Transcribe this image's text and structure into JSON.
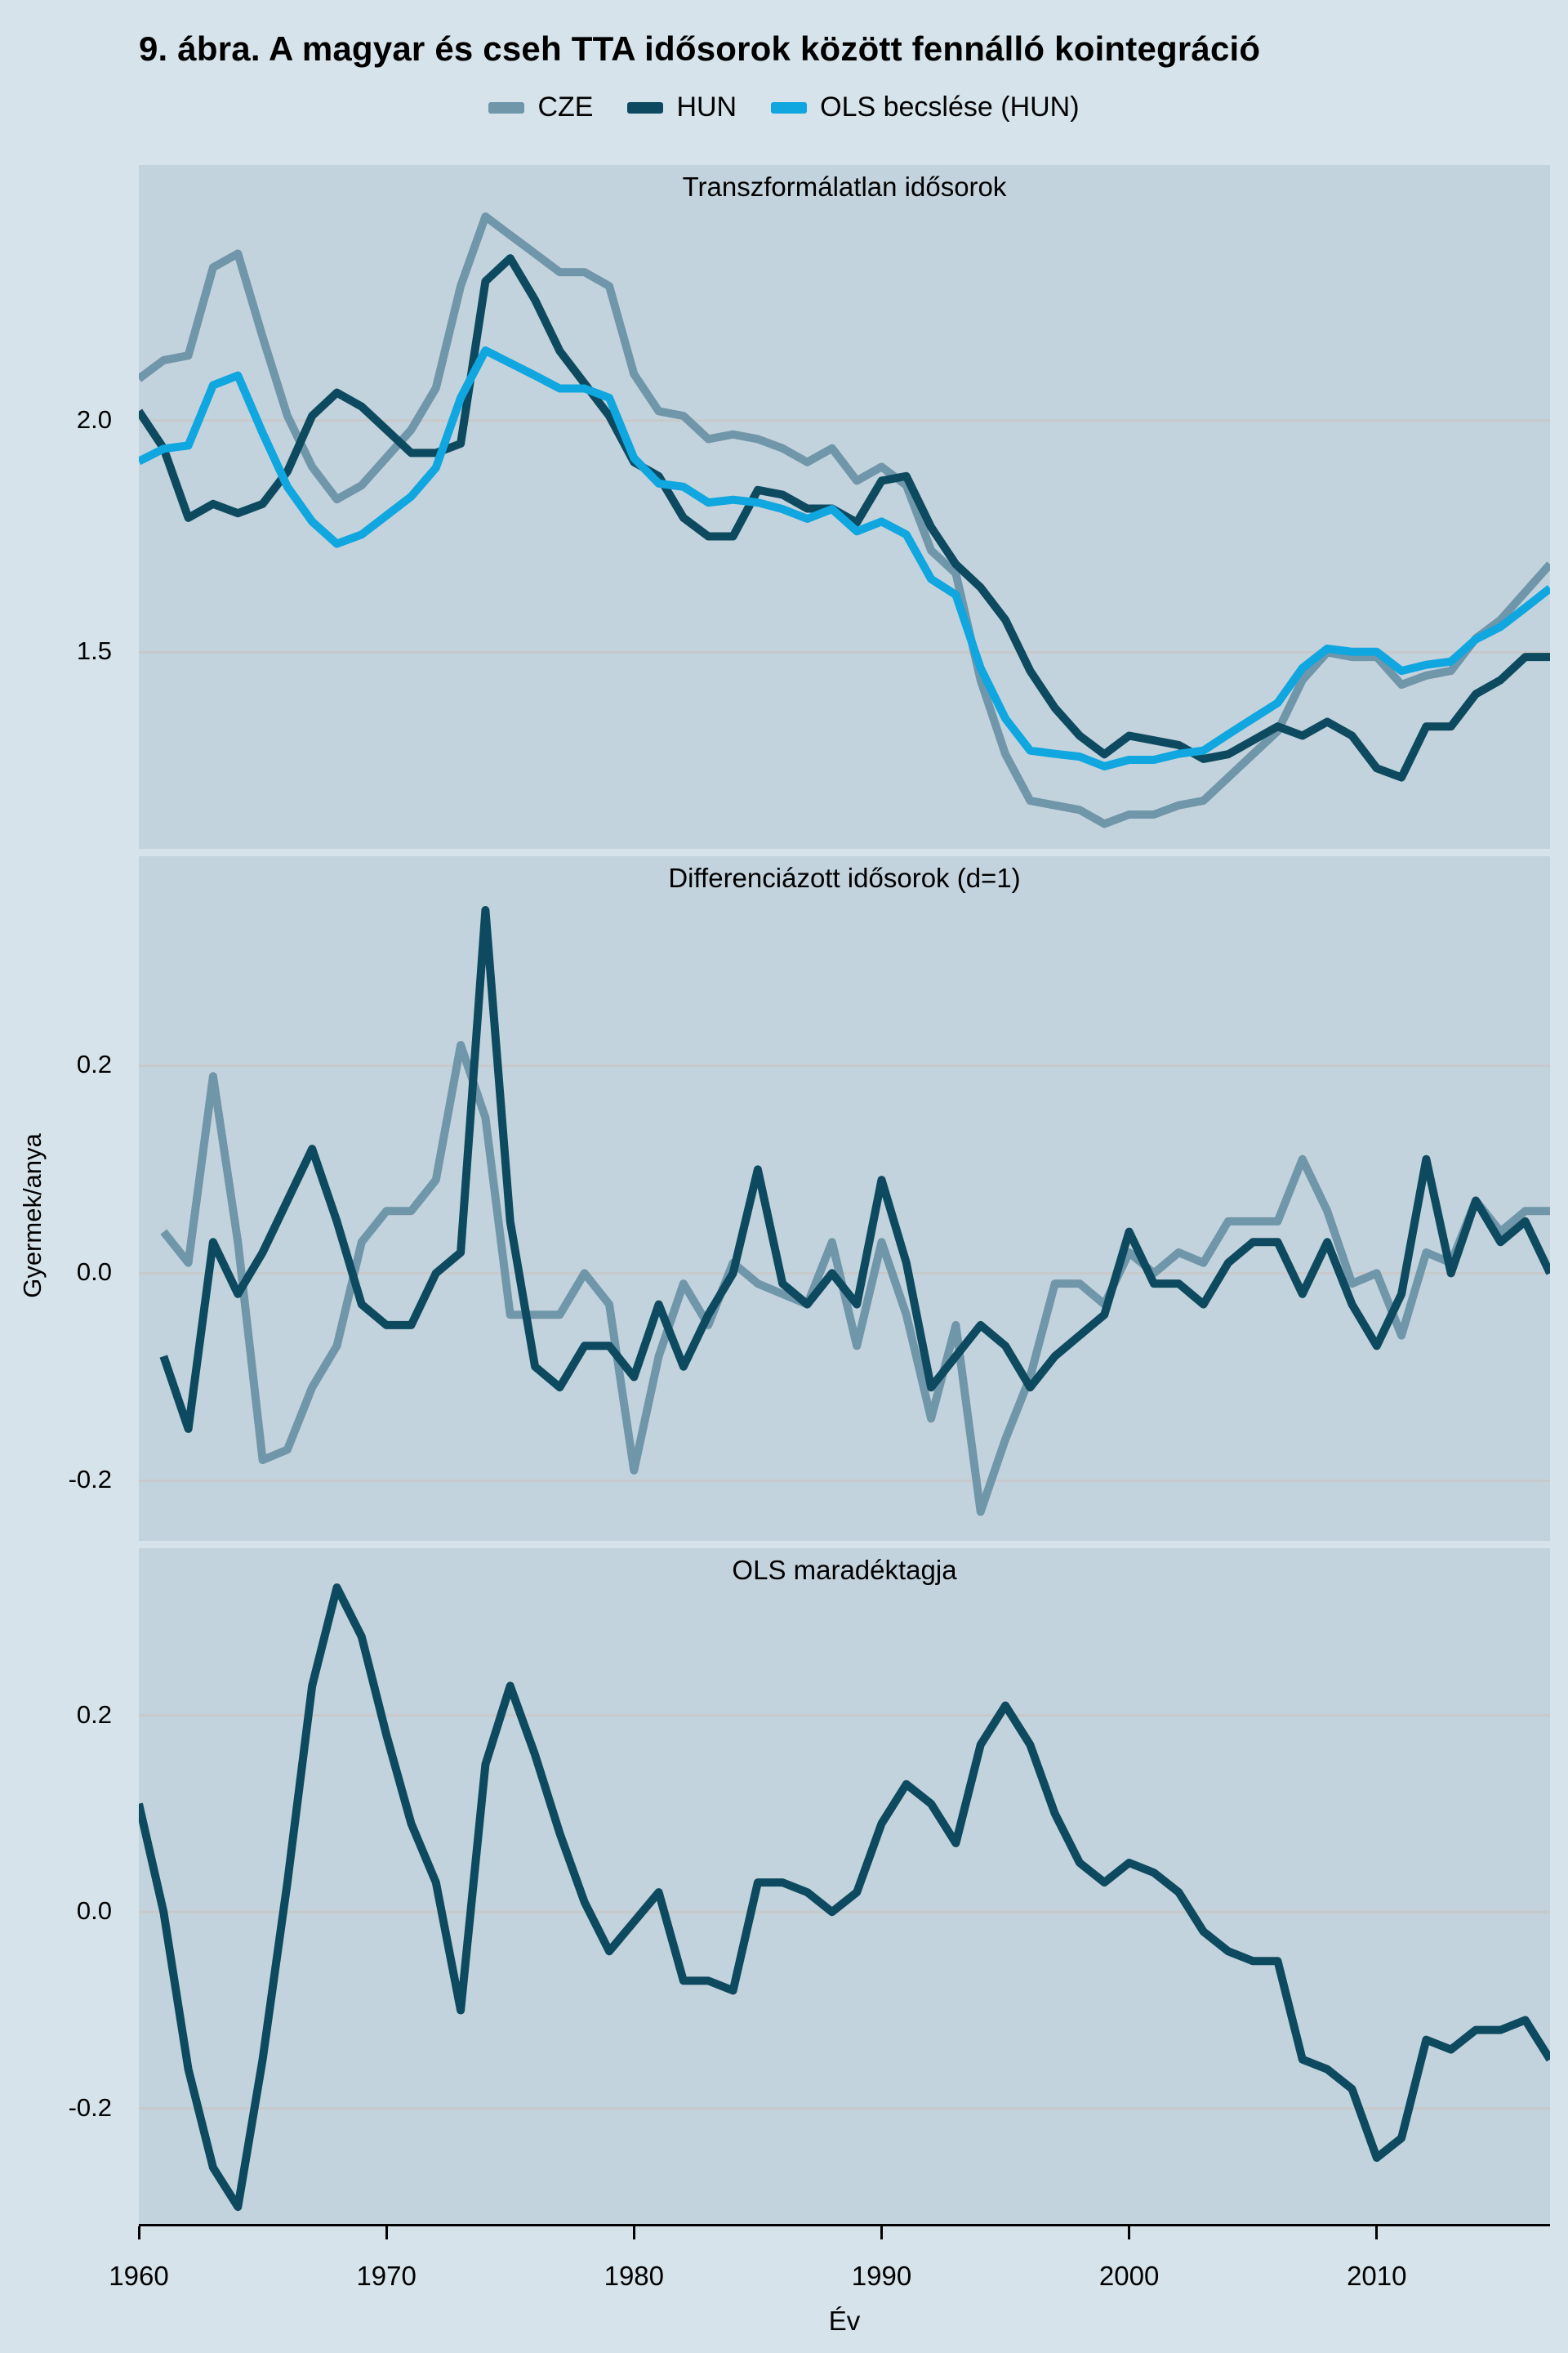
{
  "figure": {
    "title": "9. ábra. A magyar és cseh TTA idősorok között fennálló kointegráció",
    "y_axis_label": "Gyermek/anya",
    "x_axis_label": "Év",
    "x_domain": [
      1960,
      2017
    ],
    "x_ticks": [
      {
        "year": 1960,
        "label": "1960"
      },
      {
        "year": 1970,
        "label": "1970"
      },
      {
        "year": 1980,
        "label": "1980"
      },
      {
        "year": 1990,
        "label": "1990"
      },
      {
        "year": 2000,
        "label": "2000"
      },
      {
        "year": 2010,
        "label": "2010"
      }
    ],
    "legend": [
      {
        "key": "cze",
        "label": "CZE"
      },
      {
        "key": "hun",
        "label": "HUN"
      },
      {
        "key": "ols",
        "label": "OLS becslése (HUN)"
      }
    ],
    "colors": {
      "cze": "#7096a9",
      "hun": "#0d4a5f",
      "ols": "#10a6df",
      "page_bg": "#d6e3eb",
      "panel_bg": "#c3d3dd",
      "gridline": "#c7c9ca",
      "axis": "#000000"
    }
  },
  "chart_data": [
    {
      "type": "line",
      "panel": 1,
      "title": "Transzformálatlan idősorok",
      "ylabel": "Gyermek/anya",
      "ylim": [
        1.076,
        2.551
      ],
      "grid": true,
      "gridlines": [
        {
          "value": 2.0,
          "label": "2.0"
        },
        {
          "value": 1.5,
          "label": "1.5"
        }
      ],
      "series": [
        {
          "name": "CZE",
          "color_key": "cze",
          "start_year": 1960,
          "values": [
            2.09,
            2.13,
            2.14,
            2.33,
            2.36,
            2.18,
            2.01,
            1.9,
            1.83,
            1.86,
            1.92,
            1.98,
            2.07,
            2.29,
            2.44,
            2.4,
            2.36,
            2.32,
            2.32,
            2.29,
            2.1,
            2.02,
            2.01,
            1.96,
            1.97,
            1.96,
            1.94,
            1.91,
            1.94,
            1.87,
            1.9,
            1.86,
            1.72,
            1.67,
            1.44,
            1.28,
            1.18,
            1.17,
            1.16,
            1.13,
            1.15,
            1.15,
            1.17,
            1.18,
            1.23,
            1.28,
            1.33,
            1.44,
            1.5,
            1.49,
            1.49,
            1.43,
            1.45,
            1.46,
            1.53,
            1.57,
            1.63,
            1.69
          ]
        },
        {
          "name": "HUN",
          "color_key": "hun",
          "start_year": 1960,
          "values": [
            2.02,
            1.94,
            1.79,
            1.82,
            1.8,
            1.82,
            1.89,
            2.01,
            2.06,
            2.03,
            1.98,
            1.93,
            1.93,
            1.95,
            2.3,
            2.35,
            2.26,
            2.15,
            2.08,
            2.01,
            1.91,
            1.88,
            1.79,
            1.75,
            1.75,
            1.85,
            1.84,
            1.81,
            1.81,
            1.78,
            1.87,
            1.88,
            1.77,
            1.69,
            1.64,
            1.57,
            1.46,
            1.38,
            1.32,
            1.28,
            1.32,
            1.31,
            1.3,
            1.27,
            1.28,
            1.31,
            1.34,
            1.32,
            1.35,
            1.32,
            1.25,
            1.23,
            1.34,
            1.34,
            1.41,
            1.44,
            1.49,
            1.49
          ]
        },
        {
          "name": "OLS becslése (HUN)",
          "color_key": "ols",
          "start_year": 1960,
          "values": [
            1.912,
            1.939,
            1.946,
            2.076,
            2.097,
            1.973,
            1.857,
            1.782,
            1.734,
            1.754,
            1.795,
            1.836,
            1.898,
            2.049,
            2.151,
            2.124,
            2.097,
            2.069,
            2.069,
            2.049,
            1.919,
            1.864,
            1.857,
            1.823,
            1.829,
            1.823,
            1.809,
            1.788,
            1.809,
            1.761,
            1.782,
            1.754,
            1.658,
            1.624,
            1.466,
            1.357,
            1.288,
            1.281,
            1.275,
            1.254,
            1.268,
            1.268,
            1.281,
            1.288,
            1.323,
            1.357,
            1.391,
            1.466,
            1.508,
            1.501,
            1.501,
            1.46,
            1.473,
            1.48,
            1.528,
            1.555,
            1.596,
            1.638
          ]
        }
      ]
    },
    {
      "type": "line",
      "panel": 2,
      "title": "Differenciázott idősorok (d=1)",
      "ylabel": "Gyermek/anya",
      "ylim": [
        -0.258,
        0.402
      ],
      "grid": true,
      "gridlines": [
        {
          "value": 0.2,
          "label": "0.2"
        },
        {
          "value": 0.0,
          "label": "0.0"
        },
        {
          "value": -0.2,
          "label": "-0.2"
        }
      ],
      "series": [
        {
          "name": "CZE (d=1)",
          "color_key": "cze",
          "start_year": 1961,
          "values": [
            0.04,
            0.01,
            0.19,
            0.03,
            -0.18,
            -0.17,
            -0.11,
            -0.07,
            0.03,
            0.06,
            0.06,
            0.09,
            0.22,
            0.15,
            -0.04,
            -0.04,
            -0.04,
            0.0,
            -0.03,
            -0.19,
            -0.08,
            -0.01,
            -0.05,
            0.01,
            -0.01,
            -0.02,
            -0.03,
            0.03,
            -0.07,
            0.03,
            -0.04,
            -0.14,
            -0.05,
            -0.23,
            -0.16,
            -0.1,
            -0.01,
            -0.01,
            -0.03,
            0.02,
            0.0,
            0.02,
            0.01,
            0.05,
            0.05,
            0.05,
            0.11,
            0.06,
            -0.01,
            0.0,
            -0.06,
            0.02,
            0.01,
            0.07,
            0.04,
            0.06,
            0.06
          ]
        },
        {
          "name": "HUN (d=1)",
          "color_key": "hun",
          "start_year": 1961,
          "values": [
            -0.08,
            -0.15,
            0.03,
            -0.02,
            0.02,
            0.07,
            0.12,
            0.05,
            -0.03,
            -0.05,
            -0.05,
            0.0,
            0.02,
            0.35,
            0.05,
            -0.09,
            -0.11,
            -0.07,
            -0.07,
            -0.1,
            -0.03,
            -0.09,
            -0.04,
            0.0,
            0.1,
            -0.01,
            -0.03,
            0.0,
            -0.03,
            0.09,
            0.01,
            -0.11,
            -0.08,
            -0.05,
            -0.07,
            -0.11,
            -0.08,
            -0.06,
            -0.04,
            0.04,
            -0.01,
            -0.01,
            -0.03,
            0.01,
            0.03,
            0.03,
            -0.02,
            0.03,
            -0.03,
            -0.07,
            -0.02,
            0.11,
            0.0,
            0.07,
            0.03,
            0.05,
            0.0
          ]
        }
      ]
    },
    {
      "type": "line",
      "panel": 3,
      "title": "OLS maradéktagja",
      "ylabel": "Gyermek/anya",
      "ylim": [
        -0.319,
        0.37
      ],
      "grid": true,
      "gridlines": [
        {
          "value": 0.2,
          "label": "0.2"
        },
        {
          "value": 0.0,
          "label": "0.0"
        },
        {
          "value": -0.2,
          "label": "-0.2"
        }
      ],
      "series": [
        {
          "name": "OLS maradéktag",
          "color_key": "hun",
          "start_year": 1960,
          "values": [
            0.11,
            0.0,
            -0.16,
            -0.26,
            -0.3,
            -0.15,
            0.03,
            0.23,
            0.33,
            0.28,
            0.18,
            0.09,
            0.03,
            -0.1,
            0.15,
            0.23,
            0.16,
            0.08,
            0.01,
            -0.04,
            -0.01,
            0.02,
            -0.07,
            -0.07,
            -0.08,
            0.03,
            0.03,
            0.02,
            0.0,
            0.02,
            0.09,
            0.13,
            0.11,
            0.07,
            0.17,
            0.21,
            0.17,
            0.1,
            0.05,
            0.03,
            0.05,
            0.04,
            0.02,
            -0.02,
            -0.04,
            -0.05,
            -0.05,
            -0.15,
            -0.16,
            -0.18,
            -0.25,
            -0.23,
            -0.13,
            -0.14,
            -0.12,
            -0.12,
            -0.11,
            -0.15
          ]
        }
      ]
    }
  ]
}
